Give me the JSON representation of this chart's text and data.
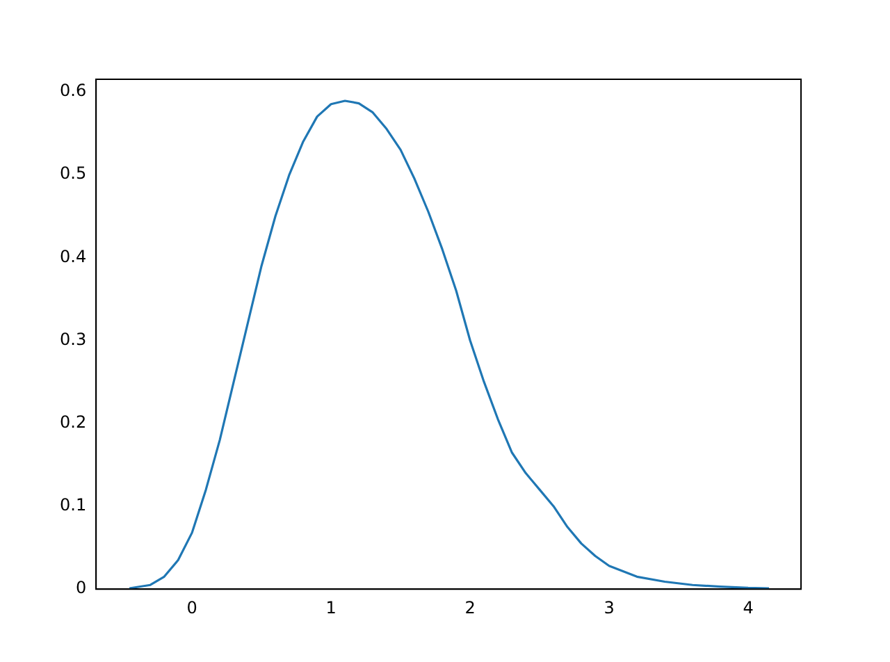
{
  "chart_data": {
    "type": "line",
    "x": [
      -0.45,
      -0.3,
      -0.2,
      -0.1,
      0,
      0.1,
      0.2,
      0.3,
      0.4,
      0.5,
      0.6,
      0.7,
      0.8,
      0.9,
      1.0,
      1.1,
      1.2,
      1.3,
      1.4,
      1.5,
      1.6,
      1.7,
      1.8,
      1.9,
      2.0,
      2.1,
      2.2,
      2.3,
      2.4,
      2.5,
      2.6,
      2.7,
      2.8,
      2.9,
      3.0,
      3.2,
      3.4,
      3.6,
      3.8,
      4.0,
      4.15
    ],
    "series": [
      {
        "color": "#1f77b4",
        "values": [
          0.001,
          0.005,
          0.015,
          0.035,
          0.068,
          0.12,
          0.18,
          0.25,
          0.32,
          0.39,
          0.45,
          0.5,
          0.54,
          0.57,
          0.585,
          0.589,
          0.586,
          0.575,
          0.555,
          0.53,
          0.495,
          0.455,
          0.41,
          0.36,
          0.3,
          0.25,
          0.205,
          0.165,
          0.14,
          0.12,
          0.1,
          0.075,
          0.055,
          0.04,
          0.028,
          0.015,
          0.009,
          0.005,
          0.003,
          0.0015,
          0.001
        ]
      }
    ],
    "xlim": [
      -0.69,
      4.38
    ],
    "ylim": [
      0,
      0.615
    ],
    "xticks": [
      0,
      1,
      2,
      3,
      4
    ],
    "yticks": [
      0,
      0.1,
      0.2,
      0.3,
      0.4,
      0.5,
      0.6
    ],
    "grid": false,
    "legend": false,
    "marker": "none",
    "line_style": "solid"
  }
}
